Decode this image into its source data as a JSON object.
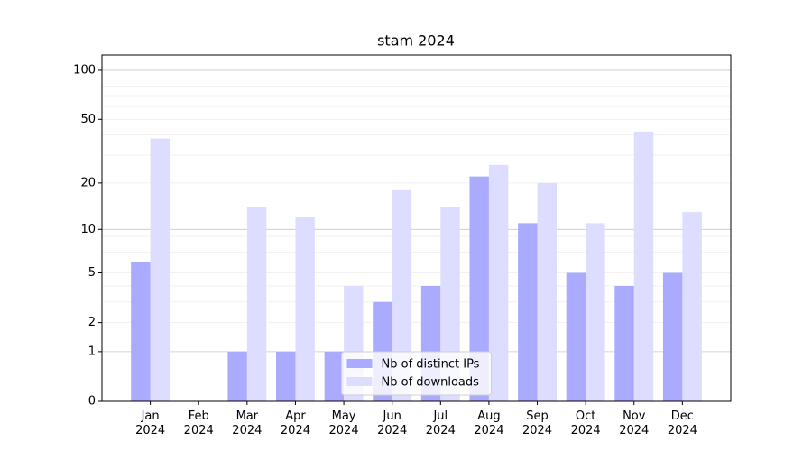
{
  "chart_data": {
    "type": "bar",
    "title": "stam 2024",
    "categories": [
      "Jan\n2024",
      "Feb\n2024",
      "Mar\n2024",
      "Apr\n2024",
      "May\n2024",
      "Jun\n2024",
      "Jul\n2024",
      "Aug\n2024",
      "Sep\n2024",
      "Oct\n2024",
      "Nov\n2024",
      "Dec\n2024"
    ],
    "series": [
      {
        "name": "Nb of distinct IPs",
        "color": "#aaaaff",
        "values": [
          6,
          0,
          1,
          1,
          1,
          3,
          4,
          22,
          11,
          5,
          4,
          5
        ]
      },
      {
        "name": "Nb of downloads",
        "color": "#ddddff",
        "values": [
          38,
          0,
          14,
          12,
          4,
          18,
          14,
          26,
          20,
          11,
          42,
          13
        ]
      }
    ],
    "yscale": "log1p",
    "ylim": [
      0,
      124
    ],
    "yticks": [
      0,
      1,
      2,
      5,
      10,
      20,
      50,
      100
    ],
    "major_gridlines": [
      1,
      10,
      100
    ],
    "minor_gridlines": [
      2,
      3,
      4,
      5,
      6,
      7,
      8,
      9,
      20,
      30,
      40,
      50,
      60,
      70,
      80,
      90
    ],
    "legend": "lower center"
  }
}
